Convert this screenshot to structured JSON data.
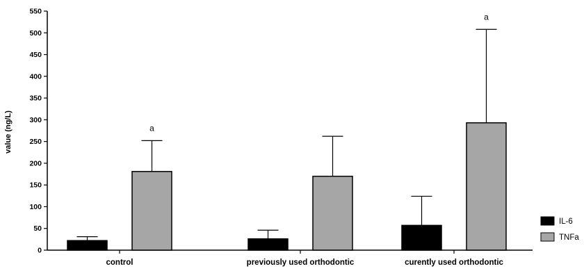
{
  "chart_data": {
    "type": "bar",
    "title": "",
    "xlabel": "",
    "ylabel": "value (ng/L)",
    "ylim": [
      0,
      550
    ],
    "ytick_step": 50,
    "grid": false,
    "legend_position": "bottom-right",
    "categories": [
      "control",
      "previously used orthodontic",
      "curently used orthodontic"
    ],
    "series": [
      {
        "name": "IL-6",
        "color": "#000000",
        "values": [
          22,
          26,
          57
        ],
        "errors": [
          9,
          20,
          67
        ],
        "annotations": [
          "",
          "",
          ""
        ]
      },
      {
        "name": "TNFa",
        "color": "#a6a6a6",
        "values": [
          181,
          170,
          293
        ],
        "errors": [
          71,
          92,
          215
        ],
        "annotations": [
          "a",
          "",
          "a"
        ]
      }
    ]
  }
}
